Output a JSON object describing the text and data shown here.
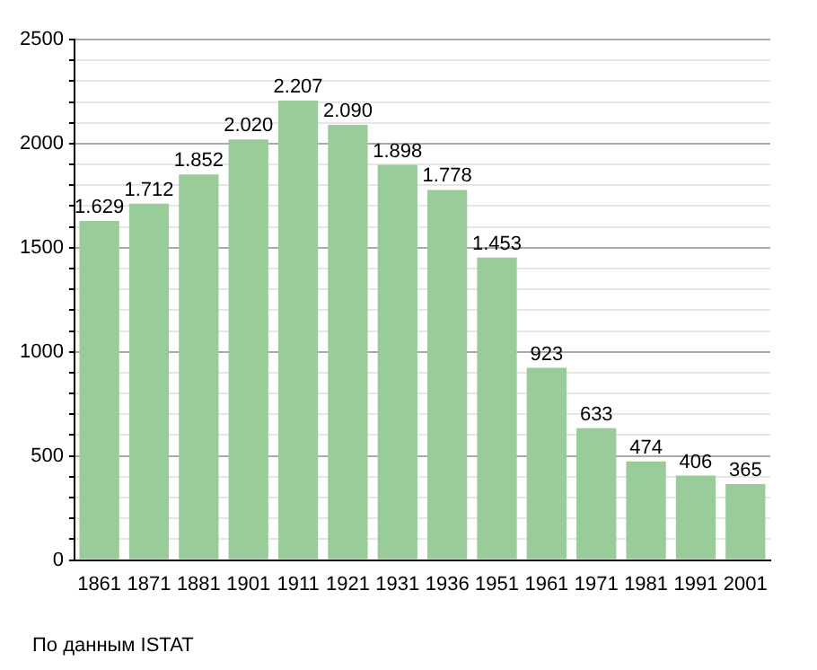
{
  "chart_data": {
    "type": "bar",
    "categories": [
      "1861",
      "1871",
      "1881",
      "1901",
      "1911",
      "1921",
      "1931",
      "1936",
      "1951",
      "1961",
      "1971",
      "1981",
      "1991",
      "2001"
    ],
    "values": [
      1629,
      1712,
      1852,
      2020,
      2207,
      2090,
      1898,
      1778,
      1453,
      923,
      633,
      474,
      406,
      365
    ],
    "value_labels": [
      "1.629",
      "1.712",
      "1.852",
      "2.020",
      "2.207",
      "2.090",
      "1.898",
      "1.778",
      "1.453",
      "923",
      "633",
      "474",
      "406",
      "365"
    ],
    "color": "#99cc99",
    "ylim": [
      0,
      2500
    ],
    "yticks": [
      0,
      {
        "value": 100,
        "label": null
      },
      {
        "value": 200,
        "label": null
      },
      {
        "value": 300,
        "label": null
      },
      {
        "value": 400,
        "label": null
      },
      500,
      {
        "value": 600,
        "label": null
      },
      {
        "value": 700,
        "label": null
      },
      {
        "value": 800,
        "label": null
      },
      {
        "value": 900,
        "label": null
      },
      1000,
      {
        "value": 1100,
        "label": null
      },
      {
        "value": 1200,
        "label": null
      },
      {
        "value": 1300,
        "label": null
      },
      {
        "value": 1400,
        "label": null
      },
      1500,
      {
        "value": 1600,
        "label": null
      },
      {
        "value": 1700,
        "label": null
      },
      {
        "value": 1800,
        "label": null
      },
      {
        "value": 1900,
        "label": null
      },
      2000,
      {
        "value": 2100,
        "label": null
      },
      {
        "value": 2200,
        "label": null
      },
      {
        "value": 2300,
        "label": null
      },
      {
        "value": 2400,
        "label": null
      },
      2500
    ],
    "grid": "y",
    "annotations": [
      "По данным ISTAT"
    ]
  }
}
